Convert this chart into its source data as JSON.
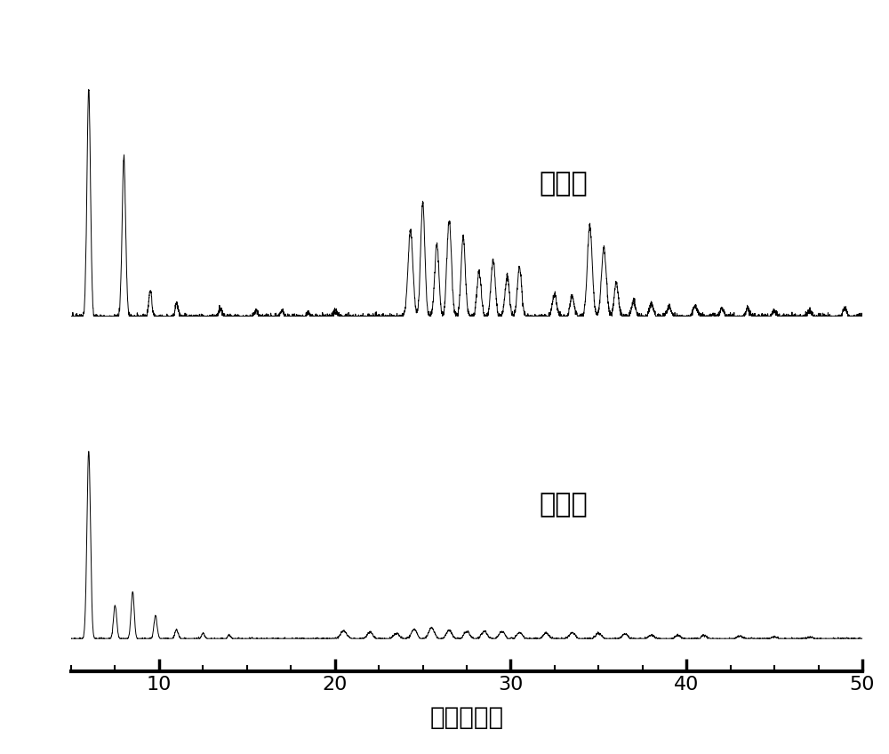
{
  "x_min": 5,
  "x_max": 50,
  "xlabel": "二倍衍射角",
  "xlabel_fontsize": 20,
  "tick_fontsize": 16,
  "label1": "实验图",
  "label2": "模拟图",
  "label_fontsize": 22,
  "background_color": "#ffffff",
  "line_color": "#000000",
  "xticks": [
    10,
    20,
    30,
    40,
    50
  ]
}
